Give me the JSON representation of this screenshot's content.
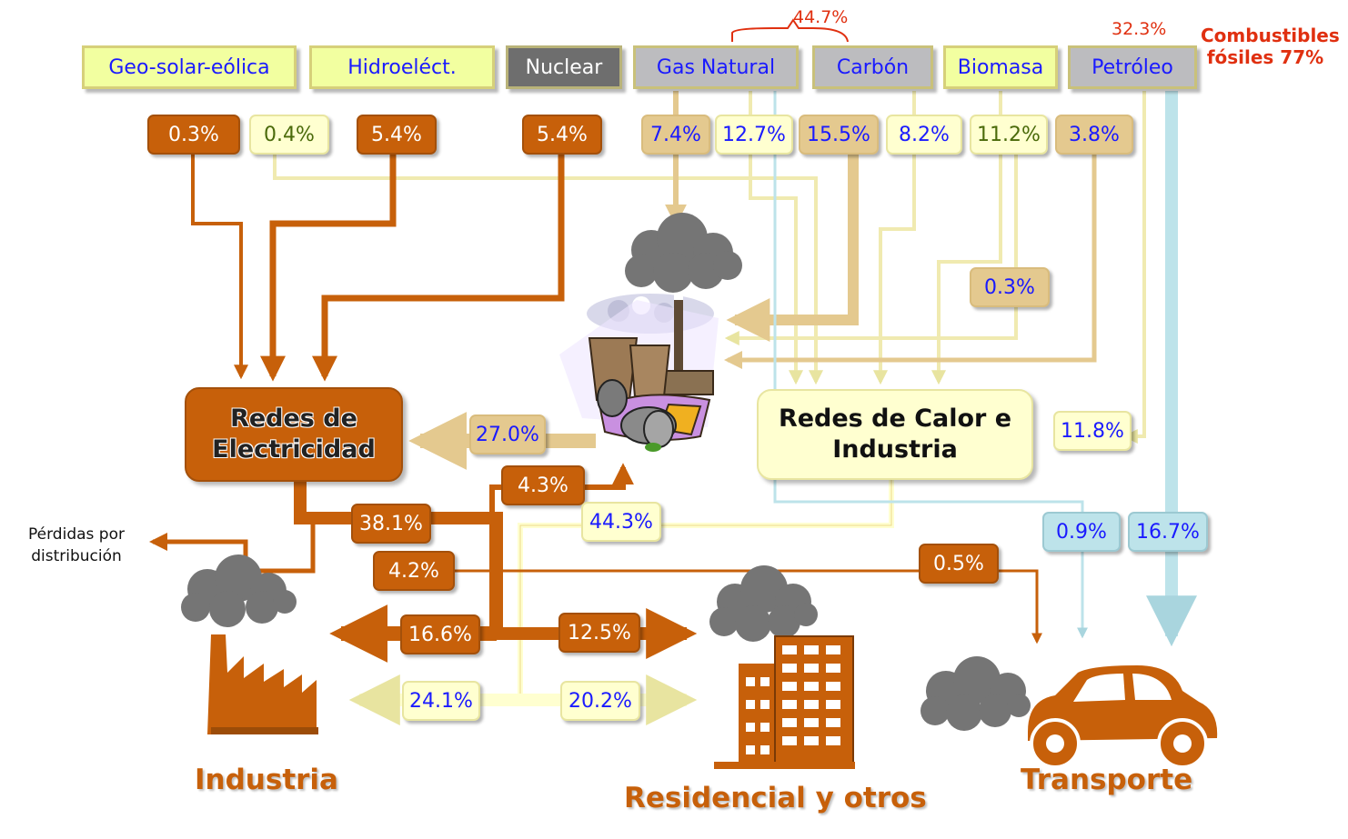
{
  "sources": {
    "geo": "Geo-solar-eólica",
    "hidro": "Hidroeléct.",
    "nuclear": "Nuclear",
    "gas": "Gas Natural",
    "carbon": "Carbón",
    "biomasa": "Biomasa",
    "petroleo": "Petróleo"
  },
  "shares": {
    "gas_carbon": "44.7%",
    "petroleo": "32.3%",
    "fossil_total": "Combustibles fósiles 77%"
  },
  "flows": {
    "geo_elec": "0.3%",
    "geo_heat": "0.4%",
    "hidro_elec": "5.4%",
    "nuclear_elec": "5.4%",
    "gas_plant": "7.4%",
    "gas_heat": "12.7%",
    "carbon_plant": "15.5%",
    "carbon_heat": "8.2%",
    "biomasa_heat": "11.2%",
    "petroleo_plant": "3.8%",
    "biomasa_plant": "0.3%",
    "petroleo_heat": "11.8%",
    "plant_elec": "27.0%",
    "elec_out": "38.1%",
    "elec_to_plant": "4.3%",
    "heat_out": "44.3%",
    "losses": "4.2%",
    "elec_transport": "0.5%",
    "elec_industry": "16.6%",
    "elec_residential": "12.5%",
    "heat_industry": "24.1%",
    "heat_residential": "20.2%",
    "gas_transport": "0.9%",
    "petroleo_transport": "16.7%"
  },
  "hubs": {
    "electricity": "Redes de Electricidad",
    "heat": "Redes de Calor e Industria"
  },
  "losses_label": "Pérdidas por distribución",
  "sectors": {
    "industry": "Industria",
    "residential": "Residencial y otros",
    "transport": "Transporte"
  },
  "colors": {
    "electricity_flow": "#c7600a",
    "heat_flow": "#ffffd0",
    "fuel_flow": "#e4c98f",
    "transport_flow": "#bde3ea",
    "source_box": "#f2ffa0",
    "fossil_box": "#bcbcbf",
    "nuclear_box": "#6e6e6e",
    "note_red": "#e03010",
    "text_blue": "#1a1aff"
  }
}
